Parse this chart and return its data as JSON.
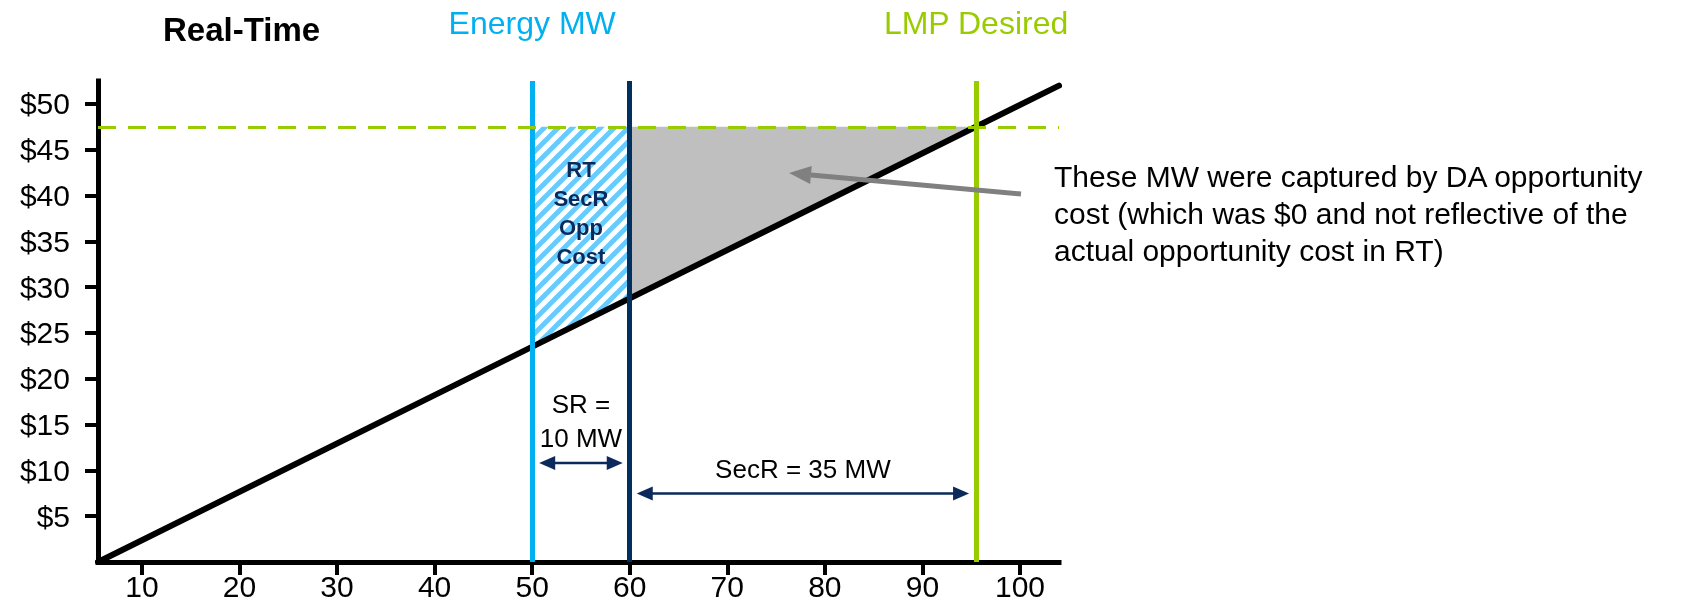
{
  "chart_data": {
    "type": "line",
    "title": "Real-Time",
    "xlim": [
      5.5,
      104
    ],
    "xticks": [
      10,
      20,
      30,
      40,
      50,
      60,
      70,
      80,
      90,
      100
    ],
    "ylim": [
      0,
      52.5
    ],
    "yticks": [
      {
        "value": 5,
        "label": "$5"
      },
      {
        "value": 10,
        "label": "$10"
      },
      {
        "value": 15,
        "label": "$15"
      },
      {
        "value": 20,
        "label": "$20"
      },
      {
        "value": 25,
        "label": "$25"
      },
      {
        "value": 30,
        "label": "$30"
      },
      {
        "value": 35,
        "label": "$35"
      },
      {
        "value": 40,
        "label": "$40"
      },
      {
        "value": 45,
        "label": "$45"
      },
      {
        "value": 50,
        "label": "$50"
      }
    ],
    "series": [
      {
        "color": "#000000",
        "x": [
          5.5,
          104
        ],
        "values": [
          0,
          52
        ]
      },
      {
        "type": "area",
        "name": "RT SecR Opp Cost",
        "color": "#66ccff",
        "x": [
          50,
          60
        ],
        "values": [
          47.5,
          47.5
        ]
      },
      {
        "type": "area",
        "color": "#bfbfbf",
        "x": [
          60,
          95.5
        ],
        "values": [
          47.5,
          47.5
        ]
      }
    ],
    "ref_lines": [
      {
        "axis": "x",
        "value": 50,
        "label": "Energy MW",
        "color": "#00b0f0"
      },
      {
        "axis": "x",
        "value": 60,
        "color": "#003060"
      },
      {
        "axis": "x",
        "value": 95.5,
        "label": "LMP Desired",
        "color": "#99cc00"
      },
      {
        "axis": "y",
        "value": 47.5,
        "color": "#99cc00",
        "line_style": "dashed"
      }
    ],
    "annotations": [
      "SR = 10 MW",
      "SecR = 35 MW",
      "These MW were captured by DA opportunity cost (which was $0 and not reflective of the actual opportunity cost in RT)"
    ],
    "grid": false,
    "marker": "none"
  }
}
